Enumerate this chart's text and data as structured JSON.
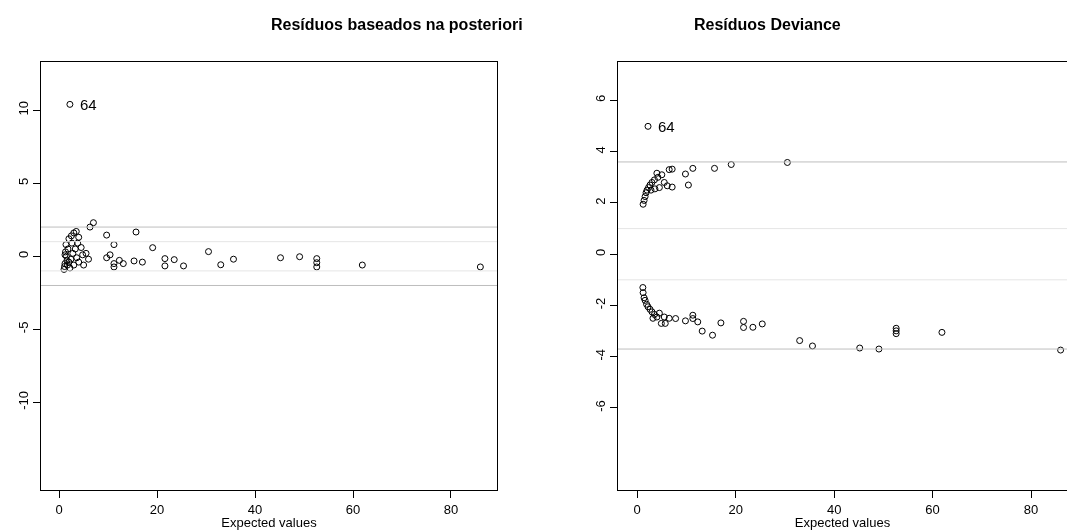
{
  "chart_data": [
    {
      "type": "scatter",
      "title": "Resíduos baseados na posteriori",
      "xlabel": "Expected values",
      "xlim": [
        -3.7,
        89.4
      ],
      "ylim": [
        -16.0,
        13.3
      ],
      "xticks": [
        0,
        20,
        40,
        60,
        80
      ],
      "yticks": [
        -10,
        -5,
        0,
        5,
        10
      ],
      "marker": "circle",
      "ref_lines": [
        {
          "axis": "y",
          "value": 2,
          "color": "#bebebe"
        },
        {
          "axis": "y",
          "value": 1,
          "color": "#e5e5e5"
        },
        {
          "axis": "y",
          "value": -1,
          "color": "#e5e5e5"
        },
        {
          "axis": "y",
          "value": -2,
          "color": "#bebebe"
        }
      ],
      "annotations": [
        {
          "text": "64",
          "x": 2.2,
          "y": 10.4
        }
      ],
      "series": [
        {
          "color": "#000000",
          "x": [
            2.2,
            7.0,
            6.3,
            9.7,
            15.7,
            11.2,
            19.1,
            10.4,
            9.7,
            12.3,
            11.2,
            11.2,
            13.1,
            15.3,
            17.0,
            21.6,
            21.6,
            23.5,
            25.4,
            30.5,
            33.0,
            35.6,
            45.2,
            49.1,
            52.6,
            52.6,
            52.6,
            61.9,
            86.0,
            1.0,
            1.2,
            1.5,
            1.8,
            2.0,
            2.5,
            3.0,
            3.5,
            4.0,
            2.2,
            3.0,
            4.0,
            5.0,
            5.5,
            4.5,
            3.8,
            6.0,
            1.3,
            1.6,
            2.8,
            1.1,
            1.4,
            2.4,
            3.3,
            4.8,
            1.7,
            2.6,
            3.6,
            1.2,
            2.0
          ],
          "values": [
            10.4,
            2.3,
            2.0,
            1.45,
            1.66,
            0.8,
            0.59,
            0.1,
            -0.1,
            -0.28,
            -0.5,
            -0.73,
            -0.5,
            -0.32,
            -0.4,
            -0.16,
            -0.66,
            -0.23,
            -0.66,
            0.32,
            -0.58,
            -0.2,
            -0.1,
            -0.03,
            -0.16,
            -0.44,
            -0.73,
            -0.6,
            -0.73,
            -0.9,
            -0.5,
            0.0,
            0.5,
            1.2,
            1.4,
            1.6,
            1.7,
            1.3,
            -0.8,
            -0.6,
            -0.4,
            -0.6,
            0.2,
            0.6,
            0.9,
            -0.2,
            0.3,
            -0.3,
            0.2,
            -0.7,
            0.8,
            -0.2,
            0.5,
            0.1,
            -0.6,
            0.9,
            -0.1,
            0.1,
            -0.4
          ]
        }
      ]
    },
    {
      "type": "scatter",
      "title": "Resíduos Deviance",
      "xlabel": "Expected values",
      "xlim": [
        -3.9,
        87.3
      ],
      "ylim": [
        -9.2,
        7.5
      ],
      "xticks": [
        0,
        20,
        40,
        60,
        80
      ],
      "yticks": [
        -6,
        -4,
        -2,
        0,
        2,
        4,
        6
      ],
      "marker": "circle",
      "ref_lines": [
        {
          "axis": "y",
          "value": 3.6,
          "color": "#bebebe"
        },
        {
          "axis": "y",
          "value": 1,
          "color": "#e5e5e5"
        },
        {
          "axis": "y",
          "value": -1,
          "color": "#e5e5e5"
        },
        {
          "axis": "y",
          "value": -3.7,
          "color": "#bebebe"
        }
      ],
      "annotations": [
        {
          "text": "64",
          "x": 2.2,
          "y": 4.99
        }
      ],
      "series": [
        {
          "color": "#000000",
          "x": [
            2.2,
            30.5,
            19.1,
            15.7,
            11.3,
            9.8,
            10.4,
            7.1,
            7.1,
            6.1,
            4.0,
            1.2,
            1.4,
            1.6,
            1.8,
            2.0,
            2.3,
            2.6,
            3.0,
            3.5,
            4.2,
            5.0,
            5.5,
            4.5,
            3.6,
            2.8,
            6.5,
            1.15,
            11.3,
            11.3,
            9.8,
            12.3,
            13.2,
            15.3,
            17.0,
            21.6,
            21.6,
            23.5,
            25.4,
            33.0,
            35.6,
            45.2,
            49.1,
            52.6,
            52.6,
            52.6,
            61.9,
            86.0,
            7.8,
            5.7,
            4.9,
            1.2,
            1.4,
            1.6,
            1.9,
            2.2,
            2.6,
            3.0,
            3.5,
            4.0,
            4.5,
            5.5,
            6.5,
            3.2
          ],
          "values": [
            4.99,
            3.58,
            3.5,
            3.35,
            3.35,
            3.13,
            2.7,
            3.32,
            2.62,
            2.67,
            3.16,
            1.95,
            2.1,
            2.25,
            2.4,
            2.5,
            2.6,
            2.7,
            2.8,
            2.9,
            3.0,
            3.1,
            2.8,
            2.6,
            2.55,
            2.5,
            3.3,
            -1.3,
            -2.38,
            -2.51,
            -2.6,
            -2.64,
            -3.0,
            -3.16,
            -2.68,
            -2.62,
            -2.86,
            -2.85,
            -2.72,
            -3.37,
            -3.58,
            -3.66,
            -3.7,
            -2.89,
            -2.99,
            -3.1,
            -3.05,
            -3.74,
            -2.51,
            -2.7,
            -2.7,
            -1.5,
            -1.7,
            -1.8,
            -1.95,
            -2.05,
            -2.15,
            -2.25,
            -2.35,
            -2.45,
            -2.3,
            -2.45,
            -2.5,
            -2.5
          ]
        }
      ]
    }
  ]
}
